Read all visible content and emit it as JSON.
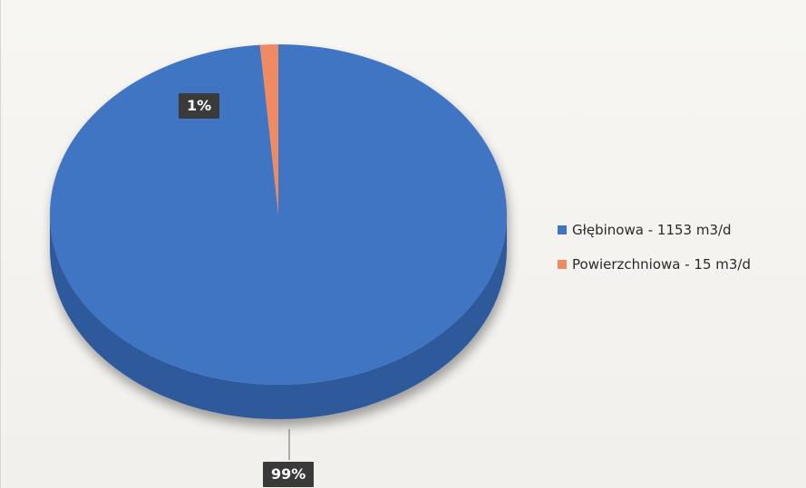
{
  "chart_data": {
    "type": "pie",
    "style": "3d",
    "title": "",
    "slices": [
      {
        "label": "Głębinowa - 1153 m3/d",
        "value": 1153,
        "percent_label": "99%",
        "color": "#3f74c4"
      },
      {
        "label": "Powierzchniowa - 15 m3/d",
        "value": 15,
        "percent_label": "1%",
        "color": "#ef8a62"
      }
    ],
    "legend_position": "right"
  },
  "colors": {
    "blue_side": "#2e5a9c",
    "orange_side": "#c96a45",
    "label_bg": "#3a3a3a"
  }
}
